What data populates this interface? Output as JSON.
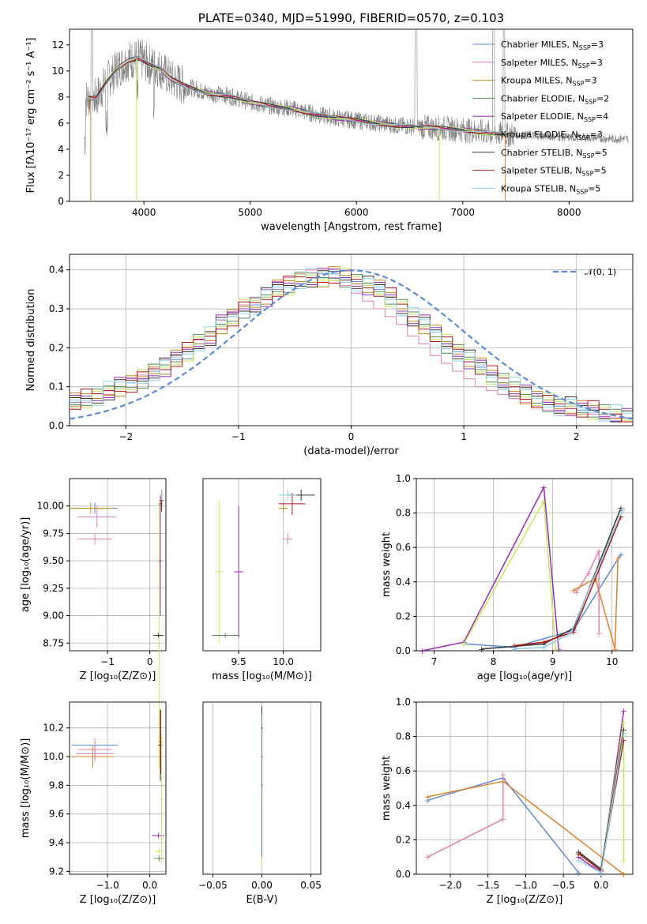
{
  "chart_data": [
    {
      "id": "spectrum",
      "type": "line",
      "title": "PLATE=0340, MJD=51990, FIBERID=0570, z=0.103",
      "xlabel": "wavelength [Angstrom, rest frame]",
      "ylabel": "Flux [fλ10⁻¹⁷ erg cm⁻² s⁻¹ A⁻¹]",
      "xlim": [
        3300,
        8600
      ],
      "ylim": [
        0,
        13.2
      ],
      "xticks": [
        4000,
        5000,
        6000,
        7000,
        8000
      ],
      "yticks": [
        0,
        2,
        4,
        6,
        8,
        10,
        12
      ],
      "data_points": {
        "x": [
          3450,
          3550,
          3650,
          3750,
          3850,
          3950,
          4050,
          4150,
          4250,
          4350,
          4450,
          4600,
          4800,
          5000,
          5200,
          5400,
          5600,
          5800,
          6000,
          6200,
          6400,
          6600,
          6800,
          7000,
          7200,
          7400,
          7600,
          7800,
          8000,
          8200,
          8400,
          8550
        ],
        "y": [
          7.9,
          7.9,
          9.2,
          10.2,
          10.8,
          11.0,
          10.5,
          10.2,
          9.4,
          9.0,
          8.7,
          8.3,
          8.1,
          7.6,
          7.3,
          7.1,
          6.7,
          6.4,
          6.2,
          6.0,
          5.8,
          5.7,
          5.6,
          5.5,
          5.3,
          5.1,
          5.1,
          5.0,
          4.9,
          4.9,
          4.8,
          4.8
        ]
      },
      "legend": [
        {
          "label": "Chabrier MILES, N",
          "sub": "SSP",
          "value": "=3",
          "color": "#5b8bd9"
        },
        {
          "label": "Salpeter MILES, N",
          "sub": "SSP",
          "value": "=3",
          "color": "#e57fb8"
        },
        {
          "label": "Kroupa MILES, N",
          "sub": "SSP",
          "value": "=3",
          "color": "#c08a1e"
        },
        {
          "label": "Chabrier ELODIE, N",
          "sub": "SSP",
          "value": "=2",
          "color": "#4f8f5a"
        },
        {
          "label": "Salpeter ELODIE, N",
          "sub": "SSP",
          "value": "=4",
          "color": "#9a2bb5"
        },
        {
          "label": "Kroupa ELODIE, N",
          "sub": "SSP",
          "value": "=3",
          "color": "#c8e65a"
        },
        {
          "label": "Chabrier STELIB, N",
          "sub": "SSP",
          "value": "=5",
          "color": "#333333"
        },
        {
          "label": "Salpeter STELIB, N",
          "sub": "SSP",
          "value": "=5",
          "color": "#b01818"
        },
        {
          "label": "Kroupa STELIB, N",
          "sub": "SSP",
          "value": "=5",
          "color": "#8fd0e8"
        }
      ]
    },
    {
      "id": "histogram",
      "type": "bar",
      "xlabel": "(data-model)/error",
      "ylabel": "Normed distribution",
      "xlim": [
        -2.5,
        2.5
      ],
      "ylim": [
        0,
        0.44
      ],
      "xticks": [
        -2,
        -1,
        0,
        1,
        2
      ],
      "yticks": [
        0.0,
        0.1,
        0.2,
        0.3,
        0.4
      ],
      "legend": "𝒩(0, 1)",
      "bin_width": 0.1,
      "series": [
        {
          "name": "Chabrier MILES",
          "values": [
            0.06,
            0.07,
            0.07,
            0.09,
            0.1,
            0.11,
            0.12,
            0.14,
            0.15,
            0.17,
            0.19,
            0.21,
            0.23,
            0.26,
            0.28,
            0.3,
            0.31,
            0.33,
            0.35,
            0.36,
            0.37,
            0.38,
            0.38,
            0.39,
            0.38,
            0.37,
            0.36,
            0.35,
            0.33,
            0.3,
            0.28,
            0.26,
            0.24,
            0.21,
            0.19,
            0.17,
            0.15,
            0.13,
            0.11,
            0.1,
            0.08,
            0.07,
            0.06,
            0.05,
            0.05,
            0.04,
            0.04,
            0.03,
            0.03,
            0.02
          ]
        },
        {
          "name": "Salpeter MILES",
          "values": [
            0.05,
            0.06,
            0.07,
            0.08,
            0.1,
            0.12,
            0.13,
            0.15,
            0.17,
            0.18,
            0.2,
            0.22,
            0.24,
            0.27,
            0.29,
            0.31,
            0.33,
            0.35,
            0.37,
            0.38,
            0.39,
            0.4,
            0.39,
            0.38,
            0.36,
            0.34,
            0.32,
            0.3,
            0.28,
            0.26,
            0.23,
            0.21,
            0.18,
            0.16,
            0.14,
            0.12,
            0.1,
            0.09,
            0.08,
            0.07,
            0.06,
            0.05,
            0.04,
            0.04,
            0.03,
            0.03,
            0.03,
            0.02,
            0.02,
            0.02
          ]
        }
      ],
      "normal_curve": {
        "mean": 0,
        "std": 1
      }
    },
    {
      "id": "age_vs_Z",
      "type": "scatter",
      "xlabel": "Z [log₁₀(Z/Z⊙)]",
      "ylabel": "age  [log₁₀(age/yr)]",
      "xlim": [
        -1.9,
        0.38
      ],
      "ylim": [
        8.68,
        10.25
      ],
      "xticks": [
        -1,
        0
      ],
      "yticks": [
        8.75,
        9.0,
        9.25,
        9.5,
        9.75,
        10.0
      ]
    },
    {
      "id": "age_vs_mass",
      "type": "scatter",
      "xlabel": "mass [log₁₀(M/M⊙)]",
      "xlim": [
        9.1,
        10.42
      ],
      "ylim": [
        8.68,
        10.25
      ],
      "xticks": [
        9.5,
        10.0
      ]
    },
    {
      "id": "weight_vs_age",
      "type": "line",
      "xlabel": "age  [log₁₀(age/yr)]",
      "ylabel": "mass weight",
      "xlim": [
        6.7,
        10.35
      ],
      "ylim": [
        0,
        1.0
      ],
      "xticks": [
        7,
        8,
        9,
        10
      ],
      "yticks": [
        0.0,
        0.2,
        0.4,
        0.6,
        0.8,
        1.0
      ]
    },
    {
      "id": "mass_vs_Z",
      "type": "scatter",
      "xlabel": "Z [log₁₀(Z/Z⊙)]",
      "ylabel": "mass [log₁₀(M/M⊙)]",
      "xlim": [
        -1.9,
        0.38
      ],
      "ylim": [
        9.18,
        10.38
      ],
      "xticks": [
        -1,
        0
      ],
      "yticks": [
        9.2,
        9.4,
        9.6,
        9.8,
        10.0,
        10.2
      ]
    },
    {
      "id": "mass_vs_ebv",
      "type": "scatter",
      "xlabel": "E(B-V)",
      "xlim": [
        -0.06,
        0.06
      ],
      "ylim": [
        9.18,
        10.38
      ],
      "xticks": [
        -0.05,
        0.0,
        0.05
      ],
      "ytick_labels": [
        "−0.05",
        "0.00",
        "0.05"
      ]
    },
    {
      "id": "weight_vs_Z",
      "type": "line",
      "xlabel": "Z [log₁₀(Z/Z⊙)]",
      "ylabel": "mass weight",
      "xlim": [
        -2.45,
        0.42
      ],
      "ylim": [
        0,
        1.0
      ],
      "xticks": [
        -2.0,
        -1.5,
        -1.0,
        -0.5,
        0.0
      ],
      "yticks": [
        0.0,
        0.2,
        0.4,
        0.6,
        0.8,
        1.0
      ]
    }
  ]
}
